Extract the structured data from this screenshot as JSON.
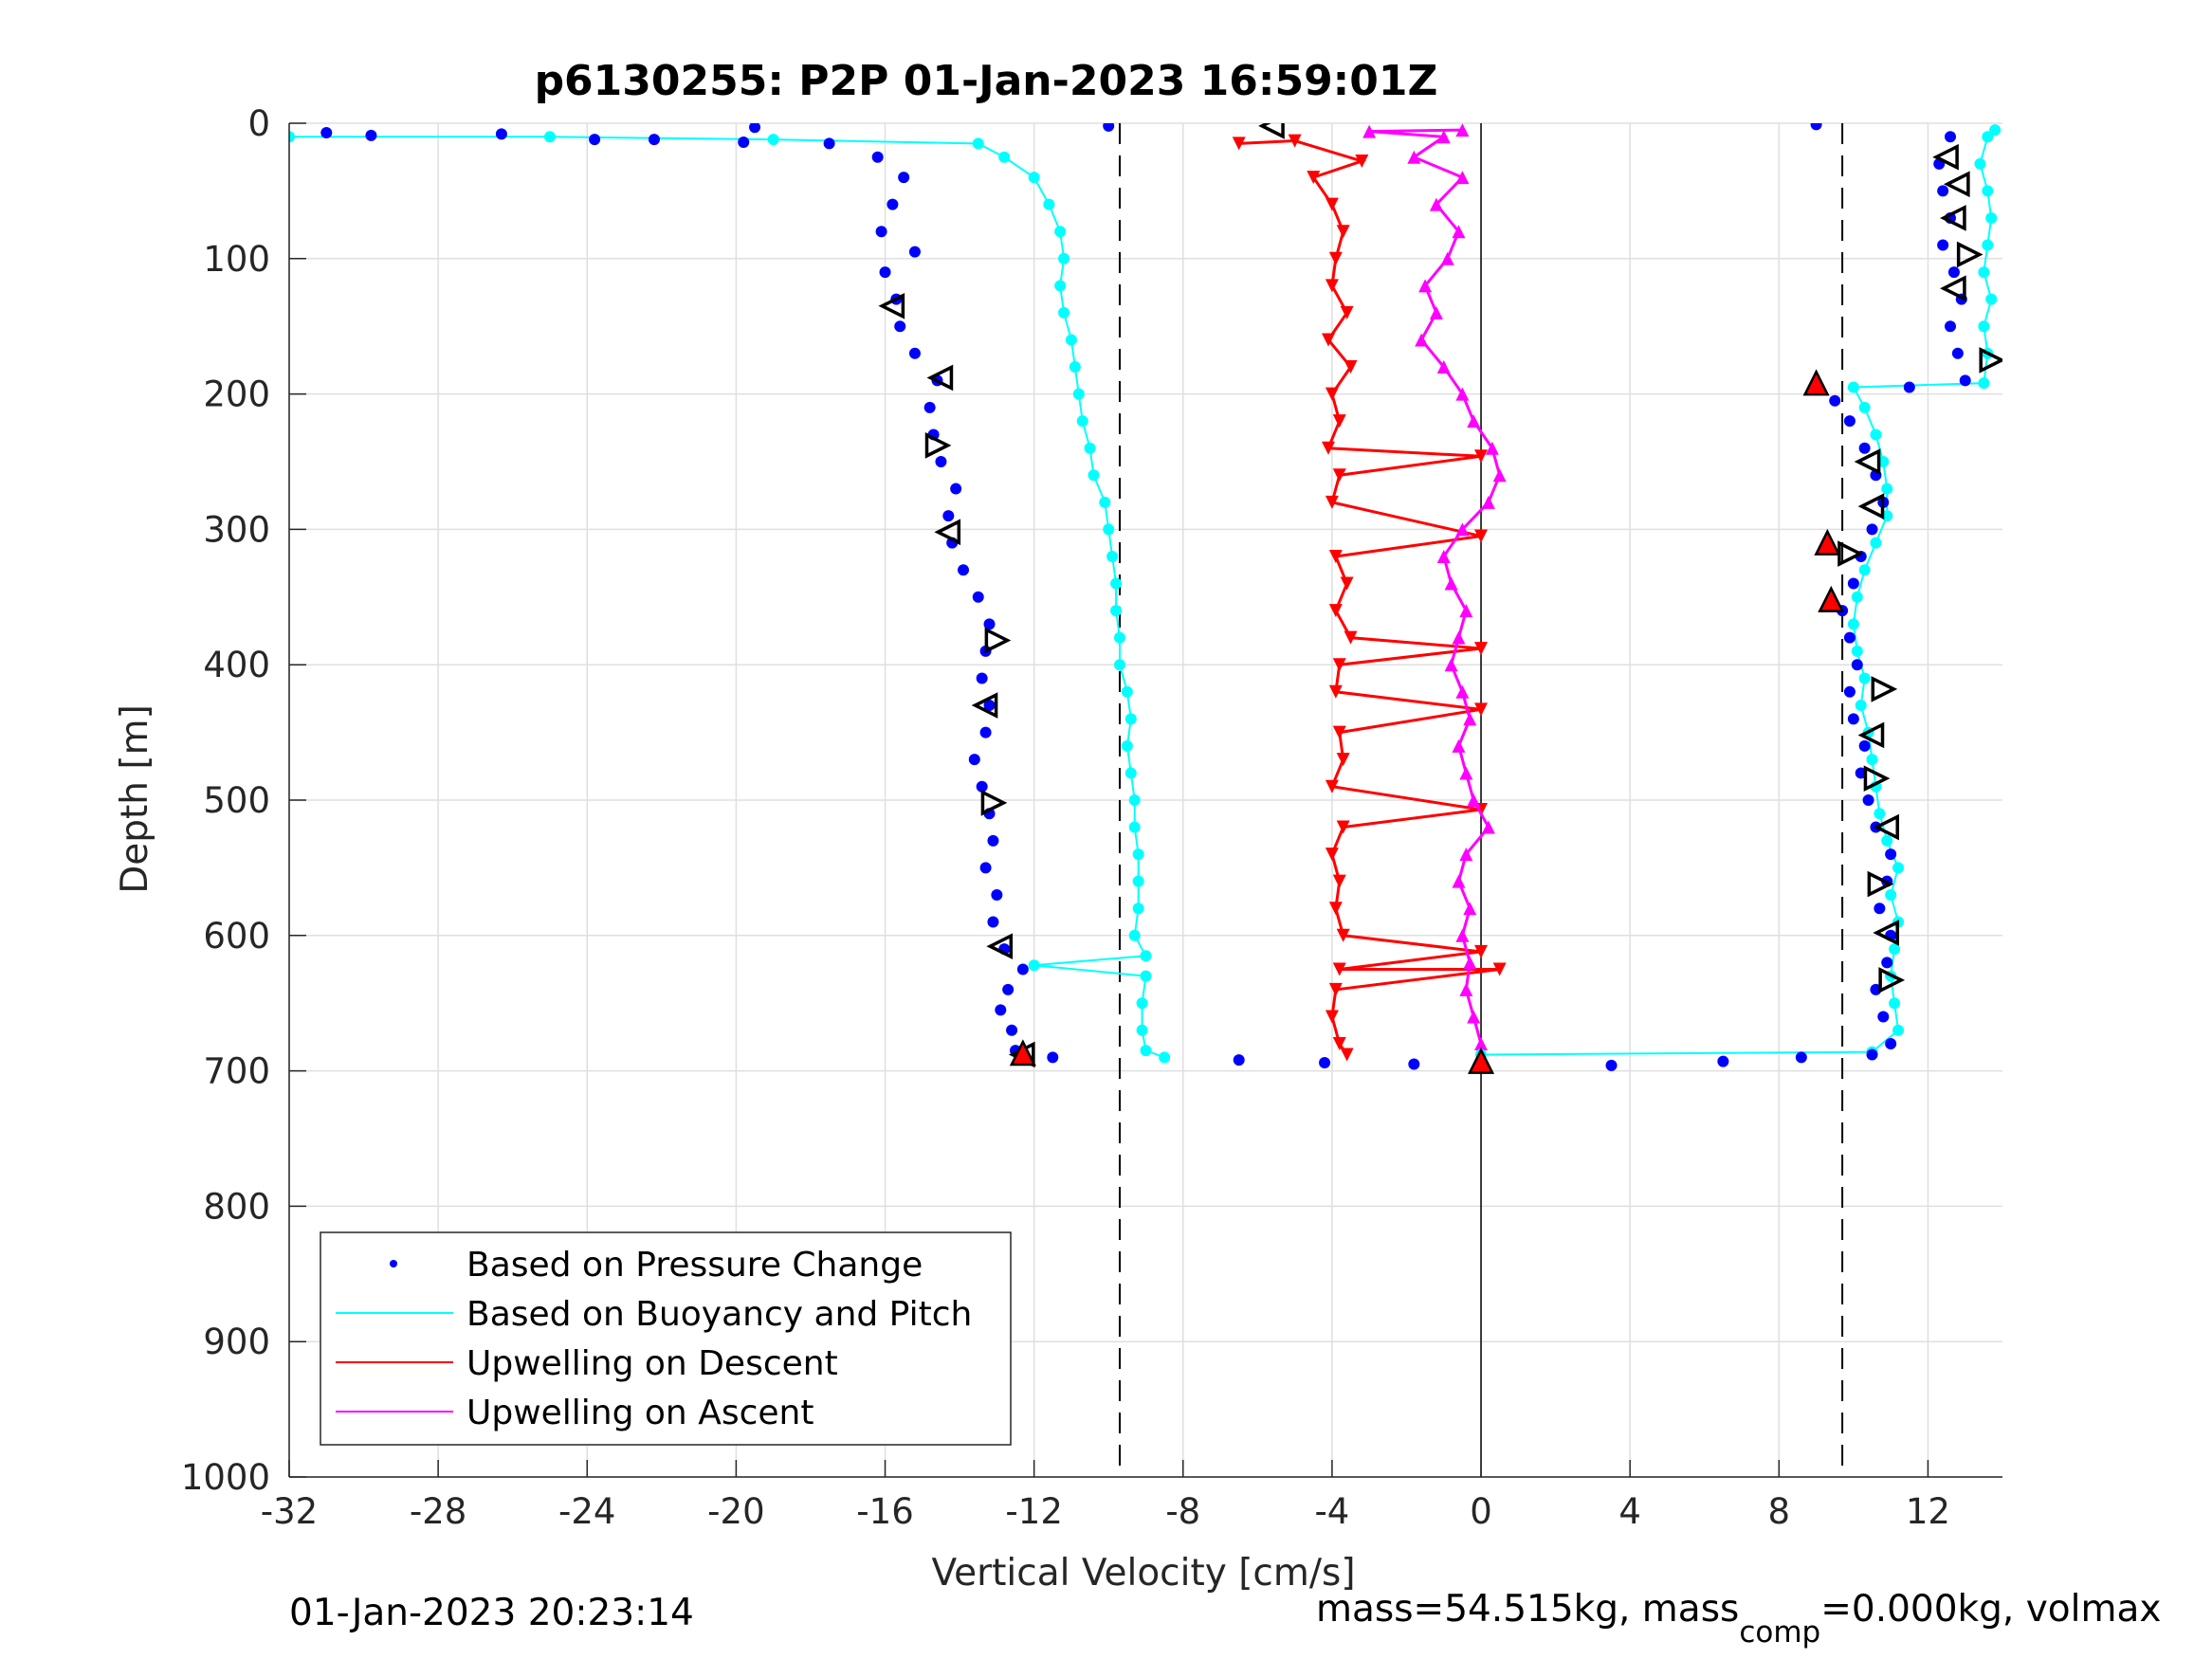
{
  "chart_data": {
    "type": "scatter",
    "title": "p6130255: P2P 01-Jan-2023 16:59:01Z",
    "xlabel": "Vertical Velocity [cm/s]",
    "ylabel": "Depth [m]",
    "xlim": [
      -32,
      14
    ],
    "ylim": [
      0,
      1000
    ],
    "y_reversed": true,
    "grid": true,
    "x_ticks": [
      -32,
      -28,
      -24,
      -20,
      -16,
      -12,
      -8,
      -4,
      0,
      4,
      8,
      12
    ],
    "x_tick_labels": [
      "-32",
      "-28",
      "-24",
      "-20",
      "-16",
      "-12",
      "-8",
      "-4",
      "0",
      "4",
      "8",
      "12"
    ],
    "y_ticks": [
      0,
      100,
      200,
      300,
      400,
      500,
      600,
      700,
      800,
      900,
      1000
    ],
    "y_tick_labels": [
      "0",
      "100",
      "200",
      "300",
      "400",
      "500",
      "600",
      "700",
      "800",
      "900",
      "1000"
    ],
    "reference_lines": {
      "dashed_x": [
        -9.7,
        9.7
      ],
      "solid_x": 0,
      "solid_x_depth_range": [
        0,
        1000
      ]
    },
    "legend_placement": "bottom-left",
    "series": [
      {
        "name": "Based on Pressure Change",
        "color": "#0000ff",
        "marker": "dot",
        "dive": [
          [
            -31.0,
            7
          ],
          [
            -29.8,
            9
          ],
          [
            -26.3,
            8
          ],
          [
            -23.8,
            12
          ],
          [
            -22.2,
            12
          ],
          [
            -19.8,
            14
          ],
          [
            -17.5,
            15
          ],
          [
            -16.2,
            25
          ],
          [
            -15.5,
            40
          ],
          [
            -15.8,
            60
          ],
          [
            -16.1,
            80
          ],
          [
            -15.2,
            95
          ],
          [
            -16.0,
            110
          ],
          [
            -15.7,
            130
          ],
          [
            -15.6,
            150
          ],
          [
            -15.2,
            170
          ],
          [
            -14.6,
            190
          ],
          [
            -14.8,
            210
          ],
          [
            -14.7,
            230
          ],
          [
            -14.5,
            250
          ],
          [
            -14.1,
            270
          ],
          [
            -14.3,
            290
          ],
          [
            -14.2,
            310
          ],
          [
            -13.9,
            330
          ],
          [
            -13.5,
            350
          ],
          [
            -13.2,
            370
          ],
          [
            -13.3,
            390
          ],
          [
            -13.4,
            410
          ],
          [
            -13.2,
            430
          ],
          [
            -13.3,
            450
          ],
          [
            -13.6,
            470
          ],
          [
            -13.4,
            490
          ],
          [
            -13.2,
            510
          ],
          [
            -13.1,
            530
          ],
          [
            -13.3,
            550
          ],
          [
            -13.0,
            570
          ],
          [
            -13.1,
            590
          ],
          [
            -12.8,
            610
          ],
          [
            -12.3,
            625
          ],
          [
            -12.7,
            640
          ],
          [
            -12.9,
            655
          ],
          [
            -12.6,
            670
          ],
          [
            -12.5,
            685
          ],
          [
            -11.5,
            690
          ]
        ],
        "climb": [
          [
            -6.5,
            692
          ],
          [
            -4.2,
            694
          ],
          [
            -1.8,
            695
          ],
          [
            3.5,
            696
          ],
          [
            6.5,
            693
          ],
          [
            8.6,
            690
          ],
          [
            10.5,
            688
          ],
          [
            11.0,
            680
          ],
          [
            10.8,
            660
          ],
          [
            10.6,
            640
          ],
          [
            10.9,
            620
          ],
          [
            11.0,
            600
          ],
          [
            10.7,
            580
          ],
          [
            10.9,
            560
          ],
          [
            11.0,
            540
          ],
          [
            10.6,
            520
          ],
          [
            10.4,
            500
          ],
          [
            10.2,
            480
          ],
          [
            10.3,
            460
          ],
          [
            10.0,
            440
          ],
          [
            9.9,
            420
          ],
          [
            10.1,
            400
          ],
          [
            9.9,
            380
          ],
          [
            9.7,
            360
          ],
          [
            10.0,
            340
          ],
          [
            10.2,
            320
          ],
          [
            10.5,
            300
          ],
          [
            10.8,
            280
          ],
          [
            10.6,
            260
          ],
          [
            10.3,
            240
          ],
          [
            9.9,
            220
          ],
          [
            9.5,
            205
          ],
          [
            11.5,
            195
          ],
          [
            13.0,
            190
          ],
          [
            12.8,
            170
          ],
          [
            12.6,
            150
          ],
          [
            12.9,
            130
          ],
          [
            12.7,
            110
          ],
          [
            12.4,
            90
          ],
          [
            12.6,
            70
          ],
          [
            12.4,
            50
          ],
          [
            12.3,
            30
          ],
          [
            12.6,
            10
          ],
          [
            9.0,
            1
          ],
          [
            -10.0,
            2
          ],
          [
            -19.5,
            3
          ]
        ]
      },
      {
        "name": "Based on Buoyancy and Pitch",
        "color": "#00ffff",
        "marker": "line-dot",
        "dive": [
          [
            -32.0,
            10
          ],
          [
            -25.0,
            10
          ],
          [
            -19.0,
            12
          ],
          [
            -13.5,
            15
          ],
          [
            -12.8,
            25
          ],
          [
            -12.0,
            40
          ],
          [
            -11.6,
            60
          ],
          [
            -11.3,
            80
          ],
          [
            -11.2,
            100
          ],
          [
            -11.3,
            120
          ],
          [
            -11.2,
            140
          ],
          [
            -11.0,
            160
          ],
          [
            -10.9,
            180
          ],
          [
            -10.8,
            200
          ],
          [
            -10.7,
            220
          ],
          [
            -10.5,
            240
          ],
          [
            -10.4,
            260
          ],
          [
            -10.1,
            280
          ],
          [
            -10.0,
            300
          ],
          [
            -9.9,
            320
          ],
          [
            -9.8,
            340
          ],
          [
            -9.8,
            360
          ],
          [
            -9.7,
            380
          ],
          [
            -9.7,
            400
          ],
          [
            -9.5,
            420
          ],
          [
            -9.4,
            440
          ],
          [
            -9.5,
            460
          ],
          [
            -9.4,
            480
          ],
          [
            -9.3,
            500
          ],
          [
            -9.3,
            520
          ],
          [
            -9.2,
            540
          ],
          [
            -9.2,
            560
          ],
          [
            -9.2,
            580
          ],
          [
            -9.3,
            600
          ],
          [
            -9.0,
            615
          ],
          [
            -12.0,
            622
          ],
          [
            -9.0,
            630
          ],
          [
            -9.1,
            650
          ],
          [
            -9.1,
            670
          ],
          [
            -9.0,
            685
          ],
          [
            -8.5,
            690
          ]
        ],
        "climb": [
          [
            0.0,
            688
          ],
          [
            10.5,
            686
          ],
          [
            11.2,
            670
          ],
          [
            11.1,
            650
          ],
          [
            11.0,
            630
          ],
          [
            11.1,
            610
          ],
          [
            11.2,
            590
          ],
          [
            11.0,
            570
          ],
          [
            11.2,
            550
          ],
          [
            10.9,
            530
          ],
          [
            10.7,
            510
          ],
          [
            10.6,
            490
          ],
          [
            10.5,
            470
          ],
          [
            10.4,
            450
          ],
          [
            10.2,
            430
          ],
          [
            10.3,
            410
          ],
          [
            10.1,
            390
          ],
          [
            10.0,
            370
          ],
          [
            10.1,
            350
          ],
          [
            10.3,
            330
          ],
          [
            10.6,
            310
          ],
          [
            10.9,
            290
          ],
          [
            10.9,
            270
          ],
          [
            10.8,
            250
          ],
          [
            10.6,
            230
          ],
          [
            10.3,
            210
          ],
          [
            10.0,
            195
          ],
          [
            13.5,
            192
          ],
          [
            13.6,
            170
          ],
          [
            13.5,
            150
          ],
          [
            13.7,
            130
          ],
          [
            13.5,
            110
          ],
          [
            13.6,
            90
          ],
          [
            13.7,
            70
          ],
          [
            13.6,
            50
          ],
          [
            13.4,
            30
          ],
          [
            13.6,
            10
          ],
          [
            13.8,
            5
          ]
        ]
      },
      {
        "name": "Upwelling on Descent",
        "color": "#ff0000",
        "marker": "triangle-down",
        "points": [
          [
            -6.5,
            15
          ],
          [
            -5.0,
            13
          ],
          [
            -3.2,
            28
          ],
          [
            -4.5,
            40
          ],
          [
            -4.0,
            60
          ],
          [
            -3.7,
            80
          ],
          [
            -3.9,
            100
          ],
          [
            -4.0,
            120
          ],
          [
            -3.6,
            140
          ],
          [
            -4.1,
            160
          ],
          [
            -3.5,
            180
          ],
          [
            -4.0,
            200
          ],
          [
            -3.8,
            220
          ],
          [
            -4.1,
            240
          ],
          [
            0.0,
            246
          ],
          [
            -3.8,
            260
          ],
          [
            -4.0,
            280
          ],
          [
            0.0,
            305
          ],
          [
            -3.9,
            320
          ],
          [
            -3.6,
            340
          ],
          [
            -3.9,
            360
          ],
          [
            -3.5,
            380
          ],
          [
            0.0,
            388
          ],
          [
            -3.8,
            400
          ],
          [
            -3.9,
            420
          ],
          [
            0.0,
            433
          ],
          [
            -3.8,
            450
          ],
          [
            -3.7,
            470
          ],
          [
            -4.0,
            490
          ],
          [
            0.0,
            507
          ],
          [
            -3.7,
            520
          ],
          [
            -4.0,
            540
          ],
          [
            -3.8,
            560
          ],
          [
            -3.9,
            580
          ],
          [
            -3.7,
            600
          ],
          [
            0.0,
            612
          ],
          [
            -3.8,
            625
          ],
          [
            0.5,
            625
          ],
          [
            -3.9,
            640
          ],
          [
            -4.0,
            660
          ],
          [
            -3.8,
            680
          ],
          [
            -3.6,
            688
          ]
        ]
      },
      {
        "name": "Upwelling on Ascent",
        "color": "#ff00ff",
        "marker": "triangle-up",
        "points": [
          [
            -1.8,
            25
          ],
          [
            -0.5,
            40
          ],
          [
            -1.2,
            60
          ],
          [
            -0.6,
            80
          ],
          [
            -0.9,
            100
          ],
          [
            -1.5,
            120
          ],
          [
            -1.2,
            140
          ],
          [
            -1.6,
            160
          ],
          [
            -1.0,
            180
          ],
          [
            -0.5,
            200
          ],
          [
            -0.2,
            220
          ],
          [
            0.3,
            240
          ],
          [
            0.5,
            260
          ],
          [
            0.2,
            280
          ],
          [
            -0.5,
            300
          ],
          [
            -1.0,
            320
          ],
          [
            -0.8,
            340
          ],
          [
            -0.4,
            360
          ],
          [
            -0.6,
            380
          ],
          [
            -0.8,
            400
          ],
          [
            -0.5,
            420
          ],
          [
            -0.3,
            440
          ],
          [
            -0.6,
            460
          ],
          [
            -0.4,
            480
          ],
          [
            -0.2,
            500
          ],
          [
            0.2,
            520
          ],
          [
            -0.4,
            540
          ],
          [
            -0.6,
            560
          ],
          [
            -0.3,
            580
          ],
          [
            -0.5,
            600
          ],
          [
            -0.3,
            620
          ],
          [
            -0.4,
            640
          ],
          [
            -0.2,
            660
          ],
          [
            0.0,
            680
          ],
          [
            -1.0,
            10
          ],
          [
            -0.5,
            5
          ],
          [
            -3.0,
            6
          ]
        ]
      }
    ],
    "event_markers": [
      {
        "kind": "triangle-left",
        "x": -5.6,
        "y": 2
      },
      {
        "kind": "triangle-left",
        "x": -15.8,
        "y": 135
      },
      {
        "kind": "triangle-left",
        "x": -14.5,
        "y": 188
      },
      {
        "kind": "triangle-right",
        "x": -14.6,
        "y": 238
      },
      {
        "kind": "triangle-left",
        "x": -14.3,
        "y": 302
      },
      {
        "kind": "triangle-right",
        "x": -13.0,
        "y": 382
      },
      {
        "kind": "triangle-left",
        "x": -13.3,
        "y": 430
      },
      {
        "kind": "triangle-right",
        "x": -13.1,
        "y": 502
      },
      {
        "kind": "triangle-left",
        "x": -12.9,
        "y": 608
      },
      {
        "kind": "triangle-left",
        "x": -12.3,
        "y": 688
      },
      {
        "kind": "triangle-left",
        "x": 12.5,
        "y": 25
      },
      {
        "kind": "triangle-left",
        "x": 12.8,
        "y": 45
      },
      {
        "kind": "triangle-left",
        "x": 12.7,
        "y": 70
      },
      {
        "kind": "triangle-right",
        "x": 13.1,
        "y": 97
      },
      {
        "kind": "triangle-left",
        "x": 12.7,
        "y": 122
      },
      {
        "kind": "triangle-right",
        "x": 13.7,
        "y": 175
      },
      {
        "kind": "triangle-left",
        "x": 10.4,
        "y": 250
      },
      {
        "kind": "triangle-left",
        "x": 10.5,
        "y": 283
      },
      {
        "kind": "triangle-right",
        "x": 9.9,
        "y": 318
      },
      {
        "kind": "triangle-right",
        "x": 10.8,
        "y": 418
      },
      {
        "kind": "triangle-left",
        "x": 10.5,
        "y": 452
      },
      {
        "kind": "triangle-right",
        "x": 10.6,
        "y": 484
      },
      {
        "kind": "triangle-left",
        "x": 10.9,
        "y": 520
      },
      {
        "kind": "triangle-right",
        "x": 10.7,
        "y": 562
      },
      {
        "kind": "triangle-left",
        "x": 10.9,
        "y": 598
      },
      {
        "kind": "triangle-right",
        "x": 11.0,
        "y": 633
      }
    ],
    "red_triangles": [
      {
        "x": 9.0,
        "y": 192
      },
      {
        "x": 9.3,
        "y": 310
      },
      {
        "x": 9.4,
        "y": 352
      },
      {
        "x": -12.3,
        "y": 687
      }
    ],
    "black_triangles": [
      {
        "x": 0.0,
        "y": 693
      }
    ]
  },
  "footer": {
    "timestamp": "01-Jan-2023 20:23:14",
    "mass_prefix": "mass=54.515kg, mass",
    "mass_subscript": "comp",
    "mass_suffix": "=0.000kg, volmax"
  }
}
